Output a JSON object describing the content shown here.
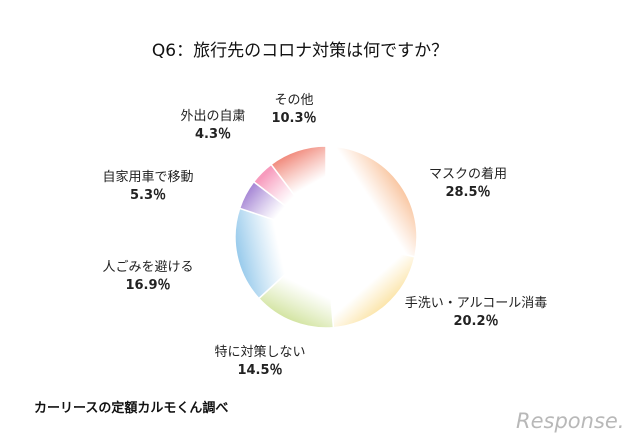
{
  "chart_data": {
    "type": "pie",
    "title": "Q6：旅行先のコロナ対策は何ですか？",
    "slices": [
      {
        "label": "マスクの着用",
        "value": 28.5,
        "value_text": "28.5％",
        "color": "#f6a86f"
      },
      {
        "label": "手洗い・アルコール消毒",
        "value": 20.2,
        "value_text": "20.2％",
        "color": "#f9d16b"
      },
      {
        "label": "特に対策しない",
        "value": 14.5,
        "value_text": "14.5％",
        "color": "#c9de8c"
      },
      {
        "label": "人ごみを避ける",
        "value": 16.9,
        "value_text": "16.9％",
        "color": "#8fc6ea"
      },
      {
        "label": "自家用車で移動",
        "value": 5.3,
        "value_text": "5.3％",
        "color": "#a98ad6"
      },
      {
        "label": "外出の自粛",
        "value": 4.3,
        "value_text": "4.3％",
        "color": "#f79bbd"
      },
      {
        "label": "その他",
        "value": 10.3,
        "value_text": "10.3％",
        "color": "#ef7a6a"
      }
    ]
  },
  "source_note": "カーリースの定額カルモくん調べ",
  "watermark": "Response."
}
